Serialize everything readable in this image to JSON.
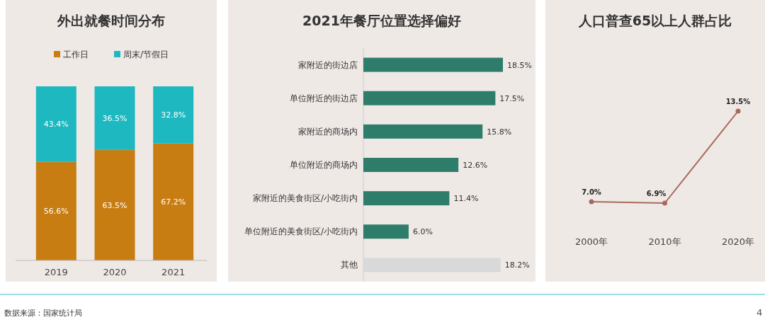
{
  "chart_data": [
    {
      "type": "bar",
      "title": "外出就餐时间分布",
      "stacked": true,
      "legend": "top",
      "categories": [
        "2019",
        "2020",
        "2021"
      ],
      "series": [
        {
          "name": "工作日",
          "color": "#c87d12",
          "values": [
            56.6,
            63.5,
            67.2
          ],
          "value_labels": [
            "56.6%",
            "63.5%",
            "67.2%"
          ]
        },
        {
          "name": "周末/节假日",
          "color": "#1eb8c0",
          "values": [
            43.4,
            36.5,
            32.8
          ],
          "value_labels": [
            "43.4%",
            "36.5%",
            "32.8%"
          ]
        }
      ],
      "annotations": [
        "数据来源：国家统计局"
      ]
    },
    {
      "type": "bar",
      "title": "2021年餐厅位置选择偏好",
      "orientation": "horizontal",
      "categories": [
        "家附近的街边店",
        "单位附近的街边店",
        "家附近的商场内",
        "单位附近的商场内",
        "家附近的美食街区/小吃街内",
        "单位附近的美食街区/小吃街内",
        "其他"
      ],
      "values": [
        18.5,
        17.5,
        15.8,
        12.6,
        11.4,
        6.0,
        18.2
      ],
      "colors": [
        "#2e7d6b",
        "#2e7d6b",
        "#2e7d6b",
        "#2e7d6b",
        "#2e7d6b",
        "#2e7d6b",
        "#d9d9d9"
      ],
      "value_labels": [
        "18.5%",
        "17.5%",
        "15.8%",
        "12.6%",
        "11.4%",
        "6.0%",
        "18.2%"
      ]
    },
    {
      "type": "line",
      "title": "人口普查65以上人群占比",
      "categories": [
        "2000年",
        "2010年",
        "2020年"
      ],
      "marker": "circle",
      "series": [
        {
          "color": "#a86a5e",
          "values": [
            7.0,
            6.9,
            13.5
          ],
          "value_labels": [
            "7.0%",
            "6.9%",
            "13.5%"
          ]
        }
      ],
      "annotations": [
        "4"
      ]
    }
  ]
}
